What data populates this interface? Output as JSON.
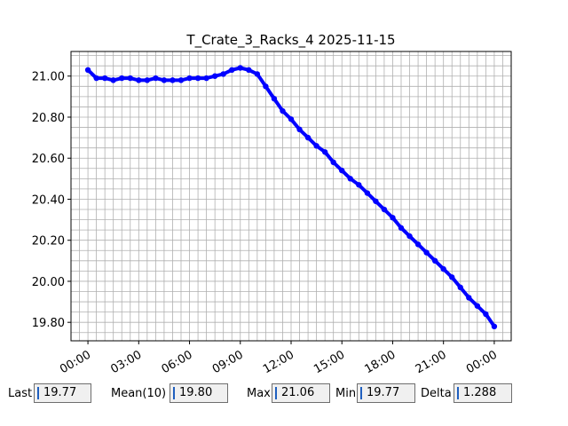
{
  "chart_data": {
    "type": "scatter",
    "title": "T_Crate_3_Racks_4 2025-11-15",
    "xlabel": "",
    "ylabel": "",
    "x_tick_labels": [
      "00:00",
      "03:00",
      "06:00",
      "09:00",
      "12:00",
      "15:00",
      "18:00",
      "21:00",
      "00:00"
    ],
    "y_tick_labels": [
      "19.80",
      "20.00",
      "20.20",
      "20.40",
      "20.60",
      "20.80",
      "21.00"
    ],
    "xlim_hours": [
      -1,
      25
    ],
    "ylim": [
      19.71,
      21.12
    ],
    "grid": true,
    "series": [
      {
        "color": "#0000ff",
        "x_hours": [
          0,
          0.5,
          1,
          1.5,
          2,
          2.5,
          3,
          3.5,
          4,
          4.5,
          5,
          5.5,
          6,
          6.5,
          7,
          7.5,
          8,
          8.5,
          9,
          9.5,
          10,
          10.5,
          11,
          11.5,
          12,
          12.5,
          13,
          13.5,
          14,
          14.5,
          15,
          15.5,
          16,
          16.5,
          17,
          17.5,
          18,
          18.5,
          19,
          19.5,
          20,
          20.5,
          21,
          21.5,
          22,
          22.5,
          23,
          23.5,
          24
        ],
        "y": [
          21.03,
          20.99,
          20.99,
          20.98,
          20.99,
          20.99,
          20.98,
          20.98,
          20.99,
          20.98,
          20.98,
          20.98,
          20.99,
          20.99,
          20.99,
          21.0,
          21.01,
          21.03,
          21.04,
          21.03,
          21.01,
          20.95,
          20.89,
          20.83,
          20.79,
          20.74,
          20.7,
          20.66,
          20.63,
          20.58,
          20.54,
          20.5,
          20.47,
          20.43,
          20.39,
          20.35,
          20.31,
          20.26,
          20.22,
          20.18,
          20.14,
          20.1,
          20.06,
          20.02,
          19.97,
          19.92,
          19.88,
          19.84,
          19.78
        ]
      }
    ]
  },
  "stats": {
    "last": {
      "label": "Last",
      "value": "19.77"
    },
    "mean": {
      "label": "Mean(10)",
      "value": "19.80"
    },
    "max": {
      "label": "Max",
      "value": "21.06"
    },
    "min": {
      "label": "Min",
      "value": "19.77"
    },
    "delta": {
      "label": "Delta",
      "value": "1.288"
    }
  }
}
